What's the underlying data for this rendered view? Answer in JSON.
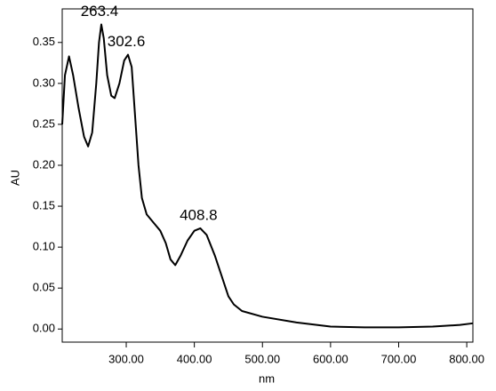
{
  "chart_data": {
    "type": "line",
    "x_label": "nm",
    "y_label": "AU",
    "xlim": [
      206,
      809
    ],
    "ylim": [
      -0.016,
      0.391
    ],
    "xticks": [
      {
        "value": 300,
        "label": "300.00"
      },
      {
        "value": 400,
        "label": "400.00"
      },
      {
        "value": 500,
        "label": "500.00"
      },
      {
        "value": 600,
        "label": "600.00"
      },
      {
        "value": 700,
        "label": "700.00"
      },
      {
        "value": 800,
        "label": "800.00"
      }
    ],
    "yticks": [
      {
        "value": 0,
        "label": "0.00"
      },
      {
        "value": 0.05,
        "label": "0.05"
      },
      {
        "value": 0.1,
        "label": "0.10"
      },
      {
        "value": 0.15,
        "label": "0.15"
      },
      {
        "value": 0.2,
        "label": "0.20"
      },
      {
        "value": 0.25,
        "label": "0.25"
      },
      {
        "value": 0.3,
        "label": "0.30"
      },
      {
        "value": 0.35,
        "label": "0.35"
      }
    ],
    "grid": false,
    "series": [
      {
        "color": "#000000",
        "x": [
          206,
          210,
          216,
          222,
          230,
          238,
          244,
          250,
          256,
          260,
          263.4,
          267,
          272,
          278,
          283,
          290,
          297,
          302.6,
          308,
          313,
          318,
          323,
          330,
          340,
          350,
          358,
          365,
          372,
          380,
          390,
          400,
          408.8,
          418,
          430,
          440,
          450,
          458,
          470,
          500,
          550,
          600,
          650,
          700,
          750,
          790,
          809
        ],
        "values": [
          0.25,
          0.31,
          0.333,
          0.31,
          0.27,
          0.235,
          0.223,
          0.24,
          0.3,
          0.35,
          0.372,
          0.355,
          0.31,
          0.285,
          0.282,
          0.3,
          0.328,
          0.335,
          0.32,
          0.26,
          0.2,
          0.16,
          0.14,
          0.13,
          0.12,
          0.105,
          0.085,
          0.078,
          0.09,
          0.108,
          0.12,
          0.123,
          0.115,
          0.09,
          0.065,
          0.04,
          0.03,
          0.022,
          0.015,
          0.008,
          0.003,
          0.002,
          0.002,
          0.003,
          0.005,
          0.007
        ]
      }
    ],
    "peaks": [
      {
        "x": 263.4,
        "y": 0.372
      },
      {
        "x": 302.6,
        "y": 0.335
      },
      {
        "x": 408.8,
        "y": 0.123
      }
    ]
  }
}
